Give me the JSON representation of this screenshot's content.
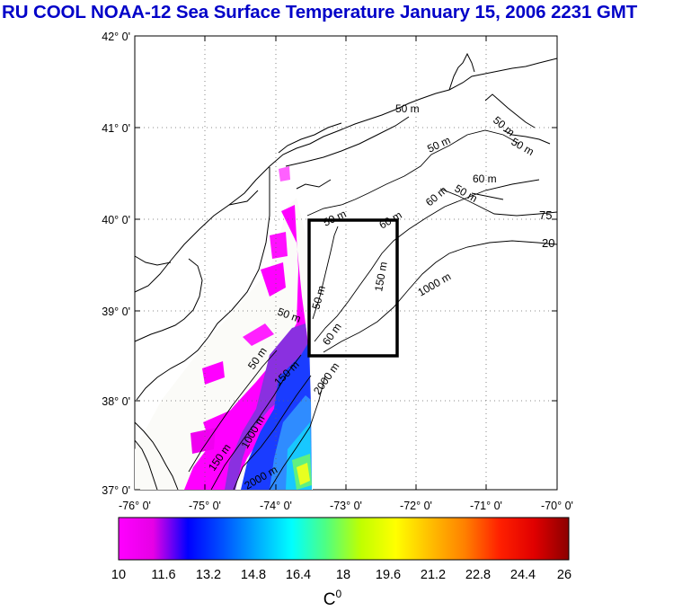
{
  "title": "RU COOL  NOAA-12 Sea Surface Temperature January 15, 2006 2231 GMT",
  "axes": {
    "lat_labels": [
      "42° 0'",
      "41° 0'",
      "40° 0'",
      "39° 0'",
      "38° 0'",
      "37° 0'"
    ],
    "lon_labels": [
      "-76° 0'",
      "-75° 0'",
      "-74° 0'",
      "-73° 0'",
      "-72° 0'",
      "-71° 0'",
      "-70° 0'"
    ],
    "lat_range": [
      37,
      42
    ],
    "lon_range": [
      -76,
      -70
    ]
  },
  "isobaths": [
    {
      "label": "50 m"
    },
    {
      "label": "50 m"
    },
    {
      "label": "50 m"
    },
    {
      "label": "50 m"
    },
    {
      "label": "60 m"
    },
    {
      "label": "50 m"
    },
    {
      "label": "60 m"
    },
    {
      "label": "60 m"
    },
    {
      "label": "50 m"
    },
    {
      "label": "50 m"
    },
    {
      "label": "60 m"
    },
    {
      "label": "150 m"
    },
    {
      "label": "1000 m"
    },
    {
      "label": "2000 m"
    },
    {
      "label": "150 m"
    },
    {
      "label": "150 m"
    },
    {
      "label": "50 m"
    },
    {
      "label": "2000 m"
    },
    {
      "label": "75"
    },
    {
      "label": "20"
    },
    {
      "label": "1000 m"
    },
    {
      "label": "50 m"
    }
  ],
  "study_box": {
    "lat_range": [
      38.5,
      40.0
    ],
    "lon_range": [
      -73.5,
      -72.3
    ]
  },
  "colorbar": {
    "ticks": [
      "10",
      "11.6",
      "13.2",
      "14.8",
      "16.4",
      "18",
      "19.6",
      "21.2",
      "22.8",
      "24.4",
      "26"
    ],
    "unit": "C",
    "unit_sup": "0",
    "range": [
      10,
      26
    ],
    "colors": [
      "#ff00ff",
      "#e600e6",
      "#0000ff",
      "#0050ff",
      "#00aaff",
      "#00ffff",
      "#50ff80",
      "#c0ff00",
      "#ffff00",
      "#ffbe00",
      "#ff8000",
      "#ff2000",
      "#e00000",
      "#8b0000"
    ]
  }
}
